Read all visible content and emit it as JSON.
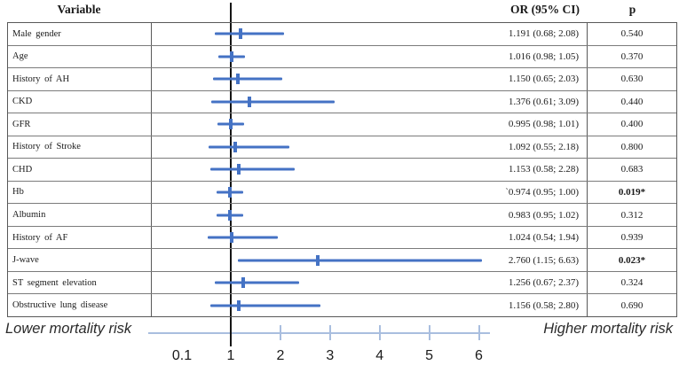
{
  "header": {
    "variable": "Variable",
    "or_ci": "OR (95% CI)",
    "p": "p"
  },
  "chart_data": {
    "type": "scatter",
    "variant": "forest-plot",
    "x_axis": {
      "tick_values": [
        0.1,
        1,
        2,
        3,
        4,
        5,
        6
      ],
      "tick_labels": [
        "0.1",
        "1",
        "2",
        "3",
        "4",
        "5",
        "6"
      ],
      "reference_line": 1,
      "scale": "linear"
    },
    "left_annotation": "Lower mortality risk",
    "right_annotation": "Higher mortality risk",
    "rows": [
      {
        "variable": "Male gender",
        "or": 1.191,
        "ci_low": 0.68,
        "ci_high": 2.08,
        "or_ci_text": "1.191 (0.68; 2.08)",
        "p": "0.540",
        "p_bold": false
      },
      {
        "variable": "Age",
        "or": 1.016,
        "ci_low": 0.98,
        "ci_high": 1.05,
        "or_ci_text": "1.016 (0.98; 1.05)",
        "p": "0.370",
        "p_bold": false
      },
      {
        "variable": "History of AH",
        "or": 1.15,
        "ci_low": 0.65,
        "ci_high": 2.03,
        "or_ci_text": "1.150 (0.65; 2.03)",
        "p": "0.630",
        "p_bold": false
      },
      {
        "variable": "CKD",
        "or": 1.376,
        "ci_low": 0.61,
        "ci_high": 3.09,
        "or_ci_text": "1.376 (0.61; 3.09)",
        "p": "0.440",
        "p_bold": false
      },
      {
        "variable": "GFR",
        "or": 0.995,
        "ci_low": 0.98,
        "ci_high": 1.01,
        "or_ci_text": "0.995 (0.98; 1.01)",
        "p": "0.400",
        "p_bold": false
      },
      {
        "variable": "History of Stroke",
        "or": 1.092,
        "ci_low": 0.55,
        "ci_high": 2.18,
        "or_ci_text": "1.092 (0.55; 2.18)",
        "p": "0.800",
        "p_bold": false
      },
      {
        "variable": "CHD",
        "or": 1.153,
        "ci_low": 0.58,
        "ci_high": 2.28,
        "or_ci_text": "1.153 (0.58; 2.28)",
        "p": "0.683",
        "p_bold": false
      },
      {
        "variable": "Hb",
        "or": 0.974,
        "ci_low": 0.95,
        "ci_high": 1.0,
        "or_ci_text": "`0.974 (0.95; 1.00)",
        "p": "0.019*",
        "p_bold": true
      },
      {
        "variable": "Albumin",
        "or": 0.983,
        "ci_low": 0.95,
        "ci_high": 1.02,
        "or_ci_text": "0.983 (0.95; 1.02)",
        "p": "0.312",
        "p_bold": false
      },
      {
        "variable": "History of AF",
        "or": 1.024,
        "ci_low": 0.54,
        "ci_high": 1.94,
        "or_ci_text": "1.024 (0.54; 1.94)",
        "p": "0.939",
        "p_bold": false
      },
      {
        "variable": "J-wave",
        "or": 2.76,
        "ci_low": 1.15,
        "ci_high": 6.63,
        "or_ci_text": "2.760 (1.15; 6.63)",
        "p": "0.023*",
        "p_bold": true
      },
      {
        "variable": "ST segment elevation",
        "or": 1.256,
        "ci_low": 0.67,
        "ci_high": 2.37,
        "or_ci_text": "1.256 (0.67; 2.37)",
        "p": "0.324",
        "p_bold": false
      },
      {
        "variable": "Obstructive lung disease",
        "or": 1.156,
        "ci_low": 0.58,
        "ci_high": 2.8,
        "or_ci_text": "1.156 (0.58; 2.80)",
        "p": "0.690",
        "p_bold": false
      }
    ]
  },
  "colors": {
    "bar": "#4472c4",
    "axis": "#a9bedf",
    "reference_line": "#151515"
  }
}
